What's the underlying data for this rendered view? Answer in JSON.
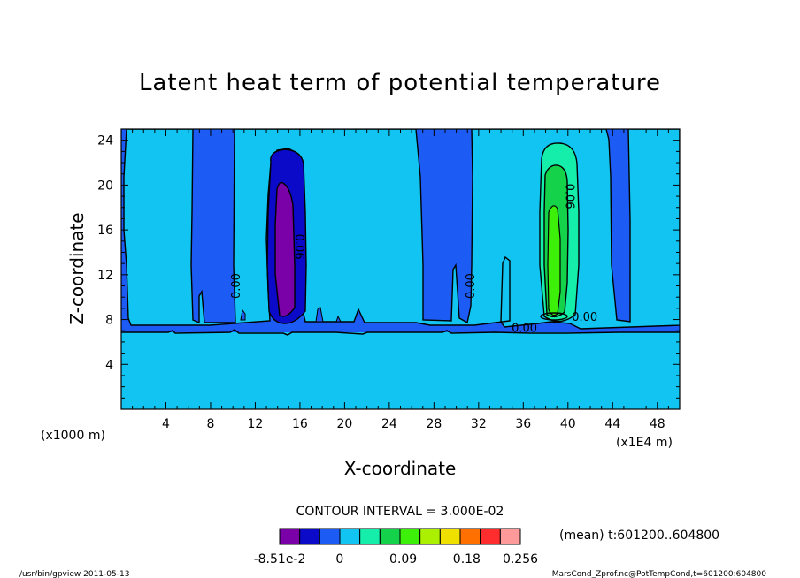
{
  "chart_data": {
    "type": "contour",
    "title": "Latent heat term of potential temperature",
    "xlabel": "X-coordinate",
    "ylabel": "Z-coordinate",
    "x_unit_label": "(x1E4 m)",
    "y_unit_label": "(x1000 m)",
    "xlim": [
      0,
      50
    ],
    "ylim": [
      0,
      25
    ],
    "x_ticks": [
      "4",
      "8",
      "12",
      "16",
      "20",
      "24",
      "28",
      "32",
      "36",
      "40",
      "44",
      "48"
    ],
    "x_tick_values": [
      4,
      8,
      12,
      16,
      20,
      24,
      28,
      32,
      36,
      40,
      44,
      48
    ],
    "y_ticks": [
      "4",
      "8",
      "12",
      "16",
      "20",
      "24"
    ],
    "y_tick_values": [
      4,
      8,
      12,
      16,
      20,
      24
    ],
    "contour_interval_text": "CONTOUR INTERVAL = 3.000E-02",
    "contour_labels": [
      {
        "text": "0.00",
        "x": 10.6,
        "z": 11
      },
      {
        "text": "0.06",
        "x": 15.6,
        "z": 14.5
      },
      {
        "text": "0.00",
        "x": 31.6,
        "z": 11
      },
      {
        "text": "0.06",
        "x": 39.8,
        "z": 19
      },
      {
        "text": "0.00",
        "x": 36.1,
        "z": 6.9
      },
      {
        "text": "0.00",
        "x": 41.5,
        "z": 7.9
      }
    ],
    "colorbar": {
      "colors": [
        "#7a00a8",
        "#0a0ac8",
        "#1c5cf4",
        "#12c4f2",
        "#14eeaa",
        "#14d24a",
        "#3cf00a",
        "#aaf000",
        "#f0e000",
        "#ff7000",
        "#ff2d2d",
        "#ff9a9a"
      ],
      "labels": [
        "-8.51e-2",
        "0",
        "0.09",
        "0.18",
        "0.256"
      ],
      "label_values": [
        -0.0851,
        0,
        0.09,
        0.18,
        0.256
      ]
    },
    "mean_note": "(mean) t:601200..604800",
    "footer_left": "/usr/bin/gpview  2011-05-13",
    "footer_right": "MarsCond_Zprof.nc@PotTempCond,t=601200:604800"
  }
}
